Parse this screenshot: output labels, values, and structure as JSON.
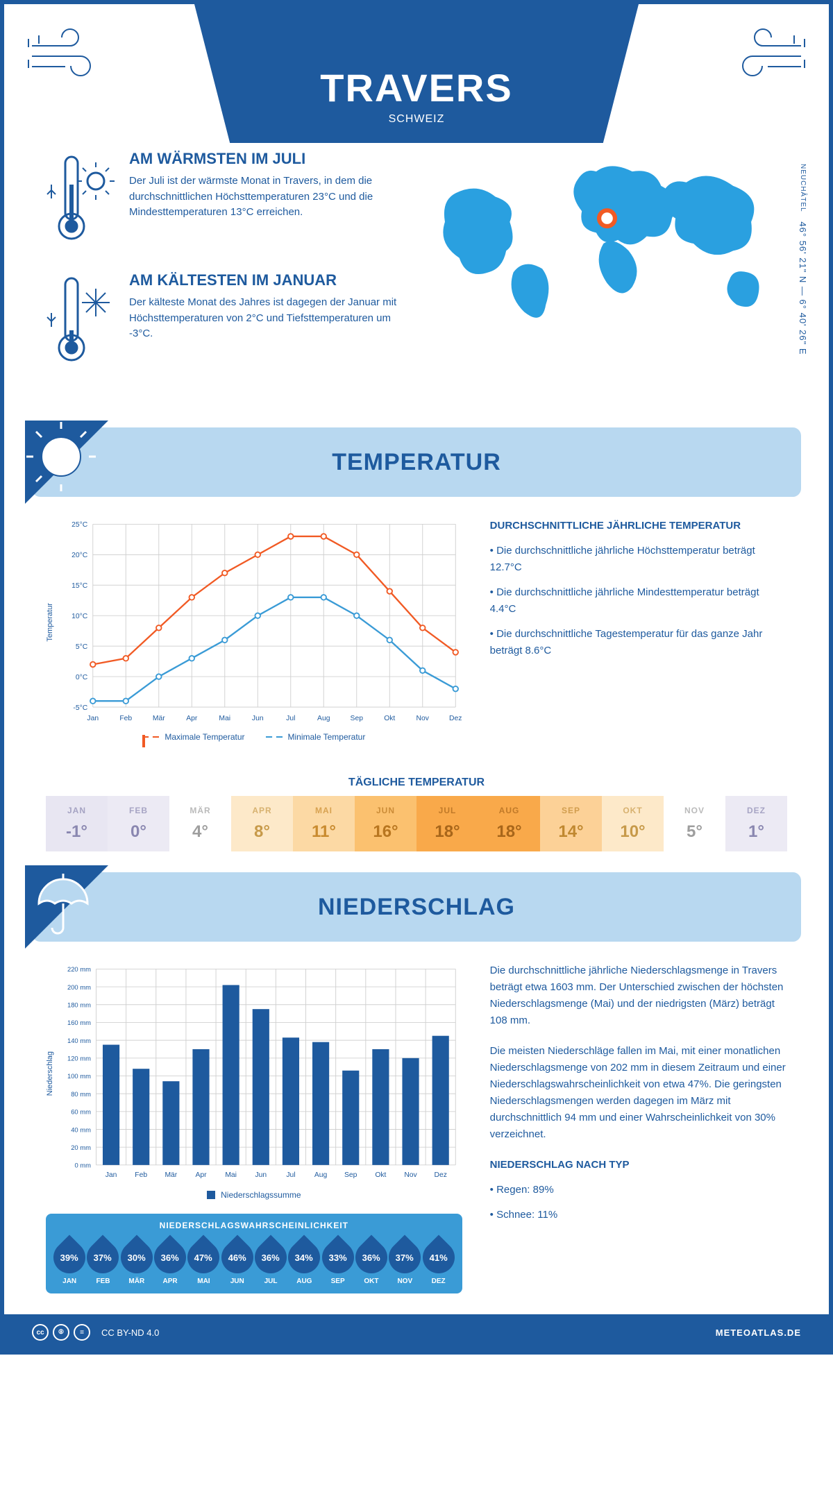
{
  "header": {
    "title": "TRAVERS",
    "subtitle": "SCHWEIZ"
  },
  "coords": "46° 56' 21\" N — 6° 40' 26\" E",
  "region_label": "NEUCHÂTEL",
  "fact_warm": {
    "title": "AM WÄRMSTEN IM JULI",
    "text": "Der Juli ist der wärmste Monat in Travers, in dem die durchschnittlichen Höchsttemperaturen 23°C und die Mindesttemperaturen 13°C erreichen."
  },
  "fact_cold": {
    "title": "AM KÄLTESTEN IM JANUAR",
    "text": "Der kälteste Monat des Jahres ist dagegen der Januar mit Höchsttemperaturen von 2°C und Tiefsttemperaturen um -3°C."
  },
  "section_temp": "TEMPERATUR",
  "section_precip": "NIEDERSCHLAG",
  "temp_chart": {
    "type": "line",
    "y_label": "Temperatur",
    "months": [
      "Jan",
      "Feb",
      "Mär",
      "Apr",
      "Mai",
      "Jun",
      "Jul",
      "Aug",
      "Sep",
      "Okt",
      "Nov",
      "Dez"
    ],
    "max_series": {
      "label": "Maximale Temperatur",
      "color": "#f15a24",
      "values": [
        2,
        3,
        8,
        13,
        17,
        20,
        23,
        23,
        20,
        14,
        8,
        4
      ]
    },
    "min_series": {
      "label": "Minimale Temperatur",
      "color": "#3a9bd6",
      "values": [
        -4,
        -4,
        0,
        3,
        6,
        10,
        13,
        13,
        10,
        6,
        1,
        -2
      ]
    },
    "ylim": [
      -5,
      25
    ],
    "ytick_labels": [
      "-5°C",
      "0°C",
      "5°C",
      "10°C",
      "15°C",
      "20°C",
      "25°C"
    ],
    "grid_color": "#d0d0d0",
    "axis_fontsize": 11
  },
  "temp_text": {
    "heading": "DURCHSCHNITTLICHE JÄHRLICHE TEMPERATUR",
    "b1": "Die durchschnittliche jährliche Höchsttemperatur beträgt 12.7°C",
    "b2": "Die durchschnittliche jährliche Mindesttemperatur beträgt 4.4°C",
    "b3": "Die durchschnittliche Tagestemperatur für das ganze Jahr beträgt 8.6°C"
  },
  "daily_temp": {
    "heading": "TÄGLICHE TEMPERATUR",
    "months": [
      "JAN",
      "FEB",
      "MÄR",
      "APR",
      "MAI",
      "JUN",
      "JUL",
      "AUG",
      "SEP",
      "OKT",
      "NOV",
      "DEZ"
    ],
    "values": [
      "-1°",
      "0°",
      "4°",
      "8°",
      "11°",
      "16°",
      "18°",
      "18°",
      "14°",
      "10°",
      "5°",
      "1°"
    ],
    "bg_colors": [
      "#e8e6f2",
      "#eceaf4",
      "#ffffff",
      "#fde9c9",
      "#fcd9a4",
      "#fbc16f",
      "#f9a94a",
      "#f9a94a",
      "#fcd197",
      "#fde9c9",
      "#ffffff",
      "#eceaf4"
    ],
    "text_colors": [
      "#8a87b0",
      "#8a87b0",
      "#9e9e9e",
      "#c79a4a",
      "#c98b2f",
      "#b87620",
      "#a8661a",
      "#a8661a",
      "#c08830",
      "#c79a4a",
      "#9e9e9e",
      "#8a87b0"
    ]
  },
  "precip_chart": {
    "type": "bar",
    "y_label": "Niederschlag",
    "months": [
      "Jan",
      "Feb",
      "Mär",
      "Apr",
      "Mai",
      "Jun",
      "Jul",
      "Aug",
      "Sep",
      "Okt",
      "Nov",
      "Dez"
    ],
    "values": [
      135,
      108,
      94,
      130,
      202,
      175,
      143,
      138,
      106,
      130,
      120,
      145
    ],
    "bar_color": "#1e5a9e",
    "ylim": [
      0,
      220
    ],
    "ytick_step": 20,
    "ytick_labels": [
      "0 mm",
      "20 mm",
      "40 mm",
      "60 mm",
      "80 mm",
      "100 mm",
      "120 mm",
      "140 mm",
      "160 mm",
      "180 mm",
      "200 mm",
      "220 mm"
    ],
    "grid_color": "#d0d0d0",
    "legend_label": "Niederschlagssumme"
  },
  "precip_text": {
    "p1": "Die durchschnittliche jährliche Niederschlagsmenge in Travers beträgt etwa 1603 mm. Der Unterschied zwischen der höchsten Niederschlagsmenge (Mai) und der niedrigsten (März) beträgt 108 mm.",
    "p2": "Die meisten Niederschläge fallen im Mai, mit einer monatlichen Niederschlagsmenge von 202 mm in diesem Zeitraum und einer Niederschlagswahrscheinlichkeit von etwa 47%. Die geringsten Niederschlagsmengen werden dagegen im März mit durchschnittlich 94 mm und einer Wahrscheinlichkeit von 30% verzeichnet.",
    "type_heading": "NIEDERSCHLAG NACH TYP",
    "type1": "Regen: 89%",
    "type2": "Schnee: 11%"
  },
  "precip_prob": {
    "heading": "NIEDERSCHLAGSWAHRSCHEINLICHKEIT",
    "months": [
      "JAN",
      "FEB",
      "MÄR",
      "APR",
      "MAI",
      "JUN",
      "JUL",
      "AUG",
      "SEP",
      "OKT",
      "NOV",
      "DEZ"
    ],
    "values": [
      "39%",
      "37%",
      "30%",
      "36%",
      "47%",
      "46%",
      "36%",
      "34%",
      "33%",
      "36%",
      "37%",
      "41%"
    ],
    "drop_color": "#1e5a9e",
    "panel_color": "#3a9bd6"
  },
  "footer": {
    "license": "CC BY-ND 4.0",
    "brand": "METEOATLAS.DE"
  },
  "palette": {
    "primary": "#1e5a9e",
    "light_blue": "#b8d8f0",
    "map_blue": "#2aa0e0"
  }
}
